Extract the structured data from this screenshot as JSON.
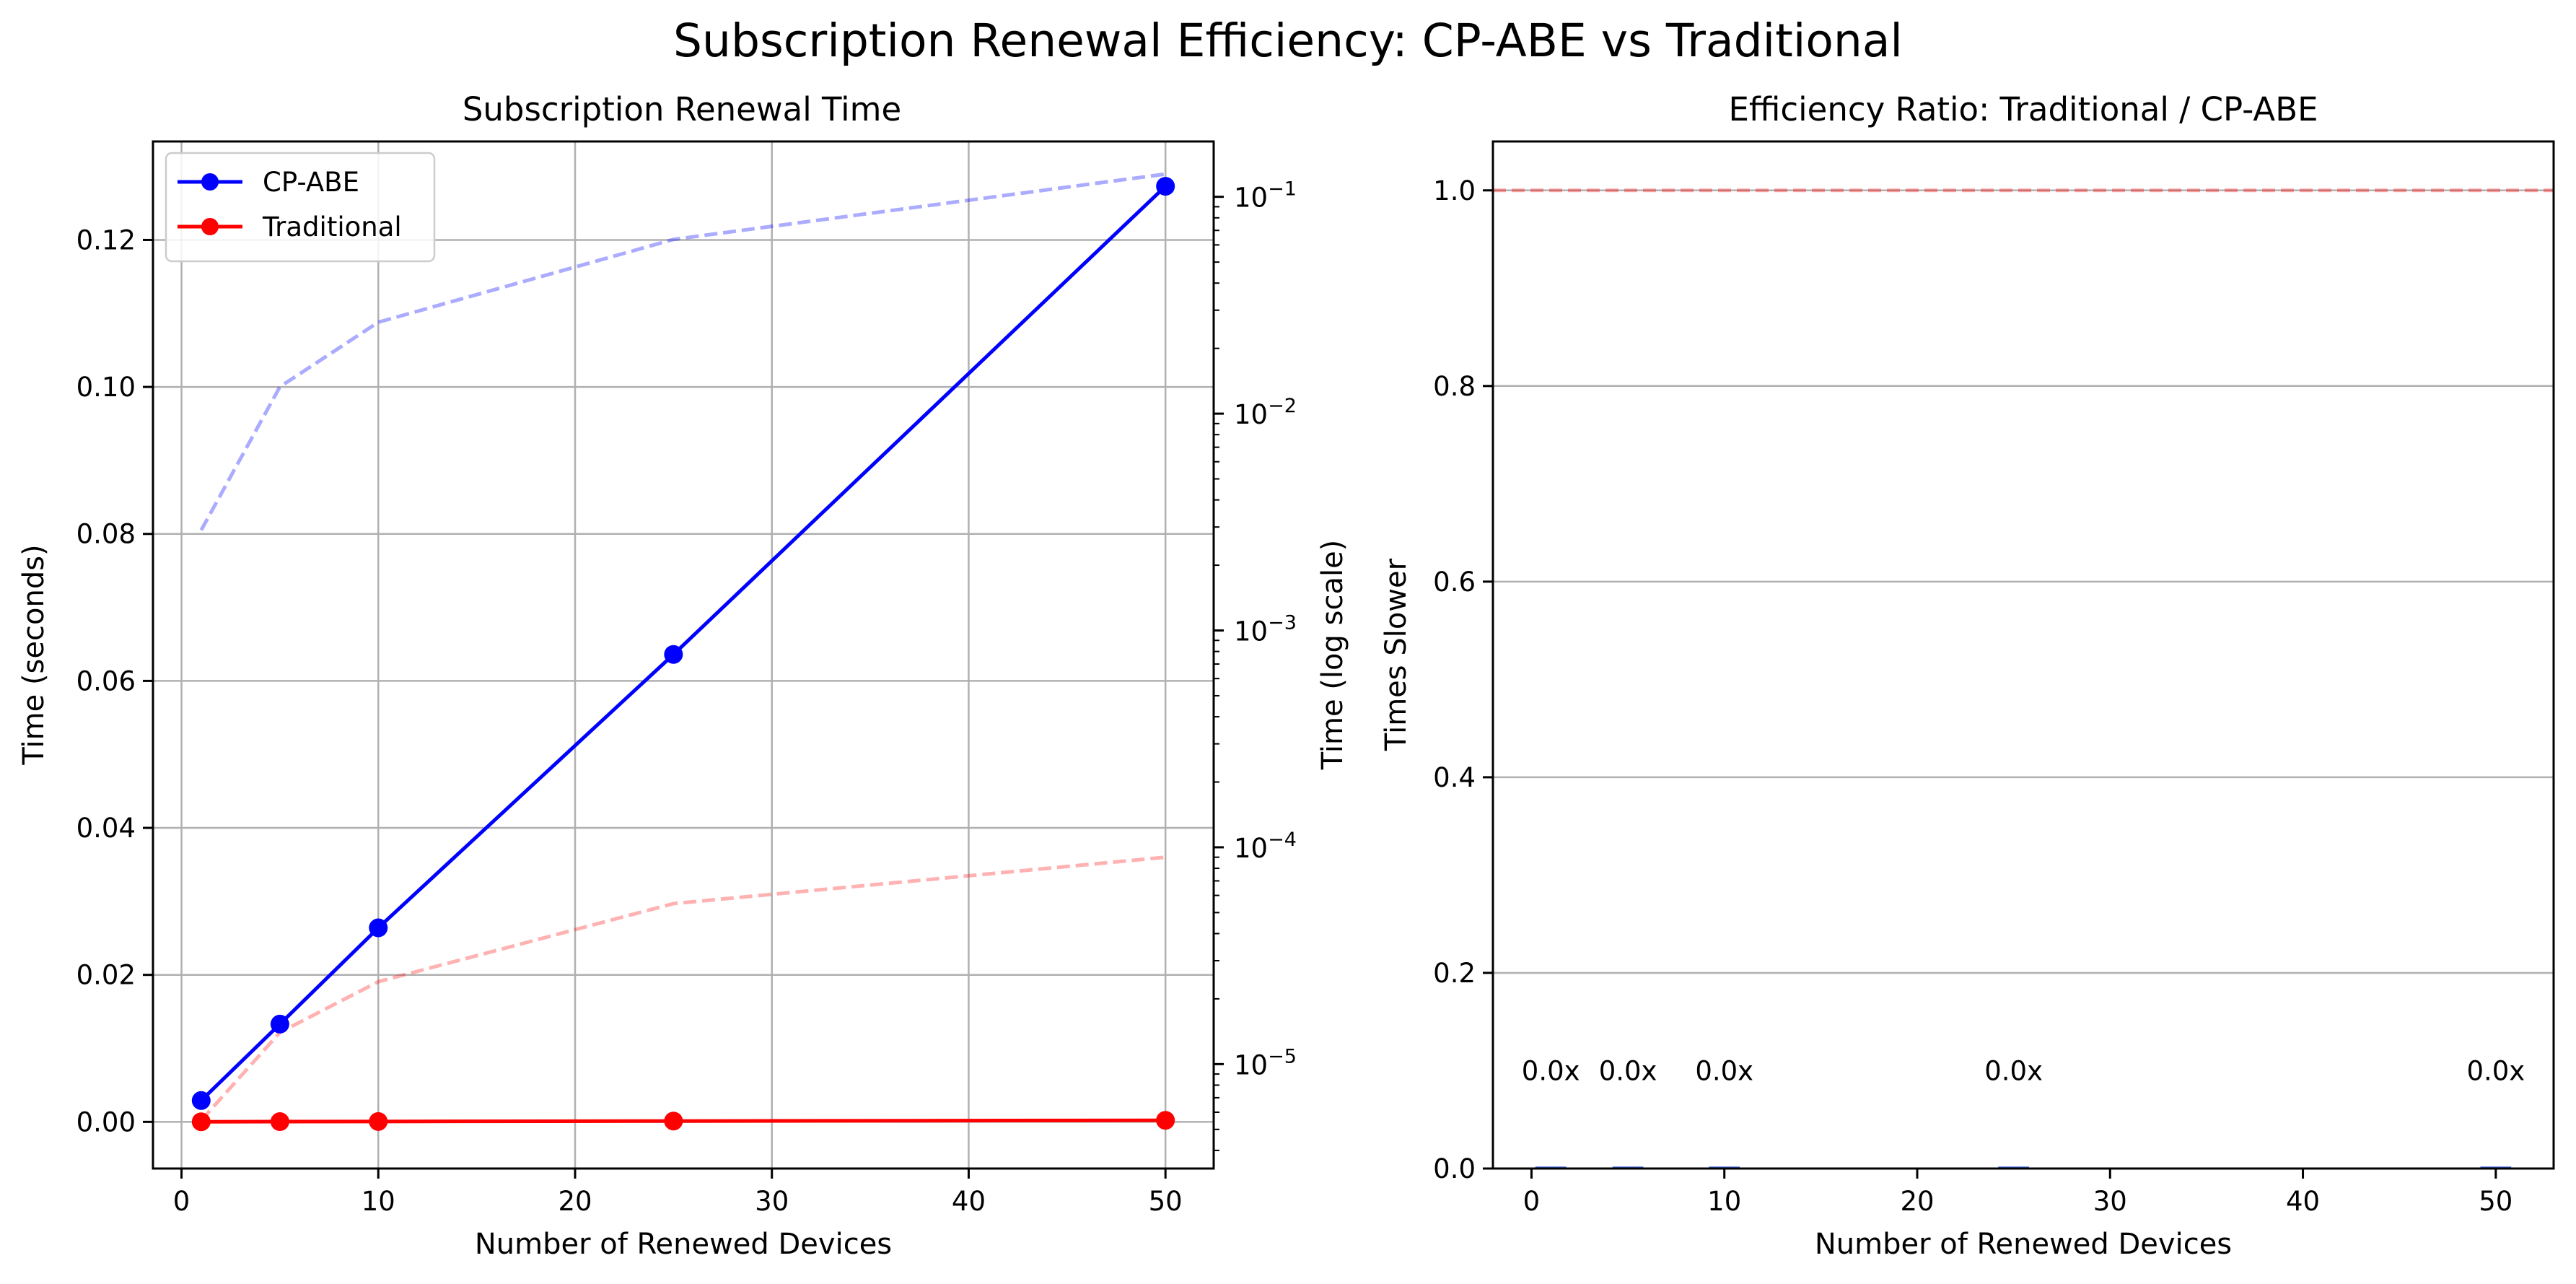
{
  "figure": {
    "title": "Subscription Renewal Efficiency: CP-ABE vs Traditional"
  },
  "chart_data": [
    {
      "type": "line",
      "title": "Subscription Renewal Time",
      "xlabel": "Number of Renewed Devices",
      "ylabel": "Time (seconds)",
      "y2label": "Time (log scale)",
      "x": [
        1,
        5,
        10,
        25,
        50
      ],
      "xlim": [
        -1.45,
        52.45
      ],
      "ylim": [
        -0.00635,
        0.1334
      ],
      "y2lim": [
        3.3e-06,
        0.18
      ],
      "y2scale": "log",
      "xticks": [
        0,
        10,
        20,
        30,
        40,
        50
      ],
      "yticks": [
        0.0,
        0.02,
        0.04,
        0.06,
        0.08,
        0.1,
        0.12
      ],
      "yticklabels": [
        "0.00",
        "0.02",
        "0.04",
        "0.06",
        "0.08",
        "0.10",
        "0.12"
      ],
      "y2ticks": [
        1e-05,
        0.0001,
        0.001,
        0.01,
        0.1
      ],
      "y2tick_exponents": [
        "−5",
        "−4",
        "−3",
        "−2",
        "−1"
      ],
      "grid": true,
      "legend_position": "upper-left",
      "series": [
        {
          "name": "CP-ABE",
          "axis": "left",
          "color": "#0000ff",
          "marker": "circle",
          "values": [
            0.0029,
            0.0133,
            0.0264,
            0.0636,
            0.1273
          ]
        },
        {
          "name": "Traditional",
          "axis": "left",
          "color": "#ff0000",
          "marker": "circle",
          "values": [
            1e-05,
            3e-05,
            5e-05,
            0.00011,
            0.00021
          ]
        }
      ],
      "log_series": [
        {
          "axis": "right",
          "color": "#0000ff",
          "alpha": 0.33,
          "style": "dashed",
          "values": [
            0.0029,
            0.0133,
            0.0264,
            0.0636,
            0.1273
          ]
        },
        {
          "axis": "right",
          "color": "#ff0000",
          "alpha": 0.3,
          "style": "dashed",
          "values": [
            5.5e-06,
            1.4e-05,
            2.4e-05,
            5.5e-05,
            9e-05
          ]
        }
      ]
    },
    {
      "type": "bar",
      "title": "Efficiency Ratio: Traditional / CP-ABE",
      "xlabel": "Number of Renewed Devices",
      "ylabel": "Times Slower",
      "x": [
        1,
        5,
        10,
        25,
        50
      ],
      "values": [
        0.002,
        0.002,
        0.002,
        0.002,
        0.002
      ],
      "data_labels": [
        "0.0x",
        "0.0x",
        "0.0x",
        "0.0x",
        "0.0x"
      ],
      "xlim": [
        -2,
        53
      ],
      "ylim": [
        0,
        1.05
      ],
      "xticks": [
        0,
        10,
        20,
        30,
        40,
        50
      ],
      "yticks": [
        0.0,
        0.2,
        0.4,
        0.6,
        0.8,
        1.0
      ],
      "yticklabels": [
        "0.0",
        "0.2",
        "0.4",
        "0.6",
        "0.8",
        "1.0"
      ],
      "reference_line": {
        "y": 1.0,
        "color": "#ff0000",
        "alpha": 0.35,
        "style": "dashed"
      },
      "grid": "y",
      "bar_color": "#4169e1"
    }
  ]
}
